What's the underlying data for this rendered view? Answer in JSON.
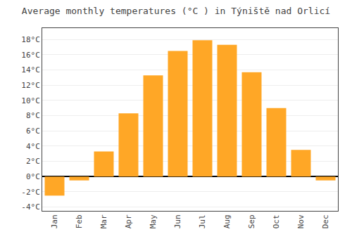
{
  "chart_data": {
    "type": "bar",
    "title": "Average monthly temperatures (°C ) in Týniště nad Orlicí",
    "categories": [
      "Jan",
      "Feb",
      "Mar",
      "Apr",
      "May",
      "Jun",
      "Jul",
      "Aug",
      "Sep",
      "Oct",
      "Nov",
      "Dec"
    ],
    "values": [
      -2.5,
      -0.5,
      3.3,
      8.3,
      13.3,
      16.5,
      17.9,
      17.3,
      13.7,
      9.0,
      3.5,
      -0.5
    ],
    "color": "#FFA726",
    "ylim": [
      -4.5,
      19.5
    ],
    "yticks": [
      {
        "value": -4,
        "label": "-4°C"
      },
      {
        "value": -2,
        "label": "-2°C"
      },
      {
        "value": 0,
        "label": "0°C"
      },
      {
        "value": 2,
        "label": "2°C"
      },
      {
        "value": 4,
        "label": "4°C"
      },
      {
        "value": 6,
        "label": "6°C"
      },
      {
        "value": 8,
        "label": "8°C"
      },
      {
        "value": 10,
        "label": "10°C"
      },
      {
        "value": 12,
        "label": "12°C"
      },
      {
        "value": 14,
        "label": "14°C"
      },
      {
        "value": 16,
        "label": "16°C"
      },
      {
        "value": 18,
        "label": "18°C"
      }
    ],
    "grid": true
  }
}
